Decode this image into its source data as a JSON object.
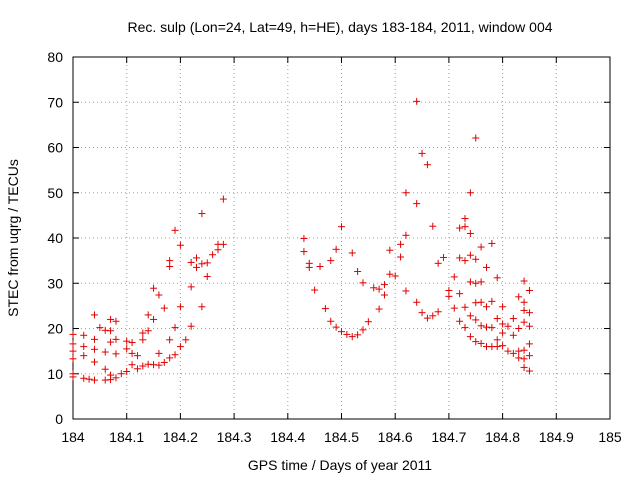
{
  "chart_data": {
    "type": "scatter",
    "title": "Rec. sulp (Lon=24, Lat=49, h=HE), days 183-184, 2011, window 004",
    "xlabel": "GPS time / Days of year 2011",
    "ylabel": "STEC from uqrg / TECUs",
    "xlim": [
      184,
      185
    ],
    "ylim": [
      0,
      80
    ],
    "xticks": [
      "184",
      "184.1",
      "184.2",
      "184.3",
      "184.4",
      "184.5",
      "184.6",
      "184.7",
      "184.8",
      "184.9",
      "185"
    ],
    "yticks": [
      "0",
      "10",
      "20",
      "30",
      "40",
      "50",
      "60",
      "70",
      "80"
    ],
    "grid": true,
    "marker": "+",
    "color": "#e00000",
    "series": [
      {
        "name": "STEC",
        "points": [
          [
            184.0,
            18.7
          ],
          [
            184.0,
            16.6
          ],
          [
            184.0,
            15.0
          ],
          [
            184.0,
            13.3
          ],
          [
            184.0,
            10.0
          ],
          [
            184.0,
            9.3
          ],
          [
            184.02,
            18.5
          ],
          [
            184.02,
            16.0
          ],
          [
            184.02,
            14.0
          ],
          [
            184.02,
            9.0
          ],
          [
            184.03,
            8.8
          ],
          [
            184.04,
            23.0
          ],
          [
            184.04,
            17.6
          ],
          [
            184.04,
            15.4
          ],
          [
            184.04,
            12.6
          ],
          [
            184.04,
            8.6
          ],
          [
            184.05,
            20.2
          ],
          [
            184.06,
            19.6
          ],
          [
            184.06,
            14.8
          ],
          [
            184.06,
            11.0
          ],
          [
            184.06,
            8.6
          ],
          [
            184.07,
            22.0
          ],
          [
            184.07,
            19.5
          ],
          [
            184.07,
            17.0
          ],
          [
            184.07,
            9.7
          ],
          [
            184.07,
            8.7
          ],
          [
            184.08,
            21.6
          ],
          [
            184.08,
            17.6
          ],
          [
            184.08,
            14.4
          ],
          [
            184.08,
            9.1
          ],
          [
            184.09,
            10.0
          ],
          [
            184.1,
            17.2
          ],
          [
            184.1,
            15.5
          ],
          [
            184.1,
            10.5
          ],
          [
            184.11,
            16.9
          ],
          [
            184.11,
            14.5
          ],
          [
            184.11,
            12.0
          ],
          [
            184.12,
            14.0
          ],
          [
            184.12,
            11.1
          ],
          [
            184.13,
            19.0
          ],
          [
            184.13,
            17.5
          ],
          [
            184.13,
            11.7
          ],
          [
            184.14,
            23.0
          ],
          [
            184.14,
            19.5
          ],
          [
            184.14,
            12.1
          ],
          [
            184.15,
            28.9
          ],
          [
            184.15,
            22.0
          ],
          [
            184.15,
            12.0
          ],
          [
            184.16,
            27.4
          ],
          [
            184.16,
            14.5
          ],
          [
            184.16,
            11.9
          ],
          [
            184.17,
            24.5
          ],
          [
            184.17,
            12.5
          ],
          [
            184.18,
            35.0
          ],
          [
            184.18,
            33.7
          ],
          [
            184.18,
            17.5
          ],
          [
            184.18,
            13.5
          ],
          [
            184.19,
            41.7
          ],
          [
            184.19,
            20.2
          ],
          [
            184.19,
            14.2
          ],
          [
            184.2,
            38.4
          ],
          [
            184.2,
            24.8
          ],
          [
            184.2,
            16.0
          ],
          [
            184.21,
            17.5
          ],
          [
            184.22,
            34.6
          ],
          [
            184.22,
            29.2
          ],
          [
            184.22,
            20.5
          ],
          [
            184.23,
            35.6
          ],
          [
            184.23,
            33.5
          ],
          [
            184.24,
            45.4
          ],
          [
            184.24,
            34.3
          ],
          [
            184.24,
            24.8
          ],
          [
            184.25,
            34.5
          ],
          [
            184.25,
            31.5
          ],
          [
            184.26,
            36.3
          ],
          [
            184.27,
            38.6
          ],
          [
            184.27,
            37.4
          ],
          [
            184.28,
            48.6
          ],
          [
            184.28,
            38.6
          ],
          [
            184.43,
            39.9
          ],
          [
            184.43,
            37.0
          ],
          [
            184.44,
            34.4
          ],
          [
            184.44,
            33.5
          ],
          [
            184.45,
            28.5
          ],
          [
            184.46,
            33.7
          ],
          [
            184.47,
            24.4
          ],
          [
            184.48,
            35.0
          ],
          [
            184.48,
            21.6
          ],
          [
            184.49,
            37.5
          ],
          [
            184.49,
            20.3
          ],
          [
            184.5,
            42.5
          ],
          [
            184.5,
            19.3
          ],
          [
            184.51,
            18.7
          ],
          [
            184.52,
            36.7
          ],
          [
            184.52,
            18.2
          ],
          [
            184.53,
            32.6
          ],
          [
            184.53,
            18.6
          ],
          [
            184.54,
            30.1
          ],
          [
            184.54,
            19.7
          ],
          [
            184.55,
            21.5
          ],
          [
            184.56,
            29.0
          ],
          [
            184.57,
            28.7
          ],
          [
            184.57,
            24.3
          ],
          [
            184.58,
            29.7
          ],
          [
            184.58,
            27.4
          ],
          [
            184.59,
            37.3
          ],
          [
            184.59,
            32.0
          ],
          [
            184.6,
            31.6
          ],
          [
            184.61,
            38.6
          ],
          [
            184.61,
            35.8
          ],
          [
            184.62,
            50.0
          ],
          [
            184.62,
            40.6
          ],
          [
            184.62,
            28.3
          ],
          [
            184.64,
            47.6
          ],
          [
            184.64,
            25.8
          ],
          [
            184.64,
            70.2
          ],
          [
            184.65,
            58.7
          ],
          [
            184.65,
            23.5
          ],
          [
            184.66,
            56.2
          ],
          [
            184.66,
            22.3
          ],
          [
            184.67,
            42.6
          ],
          [
            184.67,
            22.8
          ],
          [
            184.68,
            34.4
          ],
          [
            184.68,
            23.7
          ],
          [
            184.69,
            35.7
          ],
          [
            184.7,
            28.4
          ],
          [
            184.7,
            27.1
          ],
          [
            184.71,
            31.4
          ],
          [
            184.71,
            24.5
          ],
          [
            184.72,
            42.2
          ],
          [
            184.72,
            35.6
          ],
          [
            184.72,
            27.7
          ],
          [
            184.72,
            21.6
          ],
          [
            184.73,
            44.3
          ],
          [
            184.73,
            42.5
          ],
          [
            184.73,
            35.0
          ],
          [
            184.73,
            24.7
          ],
          [
            184.73,
            20.2
          ],
          [
            184.74,
            50.0
          ],
          [
            184.74,
            41.0
          ],
          [
            184.74,
            36.2
          ],
          [
            184.74,
            30.3
          ],
          [
            184.74,
            22.8
          ],
          [
            184.74,
            18.2
          ],
          [
            184.75,
            62.1
          ],
          [
            184.75,
            35.3
          ],
          [
            184.75,
            30.0
          ],
          [
            184.75,
            25.7
          ],
          [
            184.75,
            21.9
          ],
          [
            184.75,
            17.1
          ],
          [
            184.76,
            38.0
          ],
          [
            184.76,
            30.3
          ],
          [
            184.76,
            25.8
          ],
          [
            184.76,
            20.6
          ],
          [
            184.76,
            16.7
          ],
          [
            184.77,
            33.5
          ],
          [
            184.77,
            24.8
          ],
          [
            184.77,
            20.3
          ],
          [
            184.77,
            16.0
          ],
          [
            184.78,
            38.8
          ],
          [
            184.78,
            26.0
          ],
          [
            184.78,
            20.2
          ],
          [
            184.78,
            16.0
          ],
          [
            184.79,
            31.2
          ],
          [
            184.79,
            22.2
          ],
          [
            184.79,
            17.5
          ],
          [
            184.79,
            16.0
          ],
          [
            184.8,
            24.8
          ],
          [
            184.8,
            21.0
          ],
          [
            184.8,
            19.0
          ],
          [
            184.8,
            16.2
          ],
          [
            184.81,
            20.5
          ],
          [
            184.81,
            15.0
          ],
          [
            184.82,
            22.2
          ],
          [
            184.82,
            18.5
          ],
          [
            184.82,
            14.5
          ],
          [
            184.83,
            27.0
          ],
          [
            184.83,
            20.0
          ],
          [
            184.83,
            15.0
          ],
          [
            184.83,
            13.5
          ],
          [
            184.84,
            30.5
          ],
          [
            184.84,
            25.8
          ],
          [
            184.84,
            24.0
          ],
          [
            184.84,
            21.4
          ],
          [
            184.84,
            15.2
          ],
          [
            184.84,
            13.3
          ],
          [
            184.84,
            11.4
          ],
          [
            184.85,
            28.4
          ],
          [
            184.85,
            23.5
          ],
          [
            184.85,
            20.5
          ],
          [
            184.85,
            16.6
          ],
          [
            184.85,
            14.0
          ],
          [
            184.85,
            10.6
          ]
        ]
      }
    ]
  }
}
